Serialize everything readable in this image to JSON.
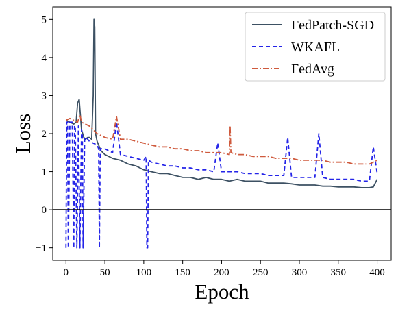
{
  "chart_data": {
    "type": "line",
    "xlabel": "Epoch",
    "ylabel": "Loss",
    "xlim": [
      -17,
      418
    ],
    "ylim": [
      -1.33,
      5.33
    ],
    "xticks": [
      "0",
      "50",
      "100",
      "150",
      "200",
      "250",
      "300",
      "350",
      "400"
    ],
    "xtick_values": [
      0,
      50,
      100,
      150,
      200,
      250,
      300,
      350,
      400
    ],
    "yticks": [
      "−1",
      "0",
      "1",
      "2",
      "3",
      "4",
      "5"
    ],
    "ytick_values": [
      -1,
      0,
      1,
      2,
      3,
      4,
      5
    ],
    "grid": false,
    "legend_position": "top-right",
    "reference_line": {
      "y": 0,
      "color": "#000000"
    },
    "series": [
      {
        "name": "FedPatch-SGD",
        "color": "#3d5163",
        "dash": "solid",
        "x": [
          0,
          5,
          10,
          13,
          15,
          17,
          20,
          23,
          25,
          28,
          30,
          33,
          35,
          36,
          37,
          38,
          40,
          45,
          50,
          60,
          70,
          80,
          90,
          100,
          110,
          120,
          130,
          140,
          150,
          160,
          170,
          180,
          190,
          200,
          210,
          220,
          230,
          240,
          250,
          260,
          270,
          280,
          290,
          300,
          310,
          320,
          330,
          340,
          350,
          360,
          370,
          380,
          390,
          395,
          400
        ],
        "y": [
          2.35,
          2.3,
          2.25,
          2.3,
          2.8,
          2.9,
          2.1,
          1.9,
          1.85,
          1.9,
          1.9,
          1.85,
          3.0,
          5.0,
          4.8,
          2.0,
          1.8,
          1.55,
          1.45,
          1.35,
          1.3,
          1.2,
          1.15,
          1.05,
          1.0,
          0.95,
          0.95,
          0.9,
          0.85,
          0.85,
          0.8,
          0.85,
          0.8,
          0.8,
          0.75,
          0.8,
          0.75,
          0.75,
          0.75,
          0.7,
          0.7,
          0.7,
          0.68,
          0.65,
          0.65,
          0.65,
          0.62,
          0.62,
          0.6,
          0.6,
          0.6,
          0.58,
          0.58,
          0.6,
          0.8
        ]
      },
      {
        "name": "WKAFL",
        "color": "#2424e8",
        "dash": "dashed",
        "x": [
          0,
          1,
          2,
          3,
          5,
          8,
          10,
          11,
          12,
          14,
          16,
          18,
          20,
          21,
          22,
          24,
          26,
          30,
          35,
          40,
          42,
          43,
          44,
          46,
          50,
          60,
          65,
          70,
          80,
          90,
          100,
          103,
          104,
          105,
          106,
          110,
          120,
          130,
          140,
          150,
          160,
          170,
          180,
          190,
          195,
          200,
          210,
          220,
          230,
          240,
          250,
          260,
          270,
          280,
          285,
          290,
          300,
          310,
          320,
          325,
          330,
          340,
          350,
          360,
          370,
          380,
          390,
          395,
          400
        ],
        "y": [
          -1.0,
          2.3,
          2.3,
          -1.0,
          2.3,
          2.3,
          -1.0,
          2.2,
          2.2,
          -1.0,
          2.2,
          -1.0,
          2.1,
          2.0,
          -1.0,
          1.9,
          1.9,
          1.8,
          1.75,
          1.7,
          1.6,
          -1.0,
          1.6,
          1.6,
          1.6,
          1.5,
          2.3,
          1.45,
          1.4,
          1.35,
          1.3,
          1.4,
          -1.0,
          -1.0,
          1.3,
          1.25,
          1.2,
          1.15,
          1.15,
          1.1,
          1.1,
          1.05,
          1.05,
          1.0,
          1.75,
          1.0,
          1.0,
          1.0,
          0.95,
          0.95,
          0.95,
          0.9,
          0.9,
          0.9,
          1.9,
          0.85,
          0.85,
          0.85,
          0.85,
          2.0,
          0.85,
          0.8,
          0.8,
          0.8,
          0.8,
          0.75,
          0.75,
          1.65,
          0.95
        ]
      },
      {
        "name": "FedAvg",
        "color": "#cf5a3d",
        "dash": "dashdot",
        "x": [
          0,
          5,
          10,
          15,
          18,
          20,
          25,
          30,
          35,
          40,
          45,
          50,
          60,
          65,
          70,
          80,
          90,
          100,
          110,
          120,
          130,
          140,
          150,
          160,
          170,
          180,
          190,
          200,
          210,
          211,
          212,
          220,
          230,
          240,
          250,
          260,
          270,
          280,
          290,
          300,
          310,
          320,
          330,
          340,
          350,
          360,
          370,
          380,
          390,
          400
        ],
        "y": [
          2.35,
          2.4,
          2.35,
          2.3,
          2.5,
          2.3,
          2.25,
          2.2,
          2.1,
          2.0,
          1.95,
          1.9,
          1.85,
          2.45,
          1.85,
          1.85,
          1.8,
          1.75,
          1.7,
          1.65,
          1.65,
          1.6,
          1.6,
          1.55,
          1.55,
          1.5,
          1.5,
          1.5,
          1.45,
          2.2,
          1.5,
          1.45,
          1.45,
          1.4,
          1.4,
          1.4,
          1.35,
          1.35,
          1.35,
          1.3,
          1.3,
          1.3,
          1.3,
          1.25,
          1.25,
          1.25,
          1.2,
          1.2,
          1.2,
          1.3
        ]
      }
    ]
  }
}
